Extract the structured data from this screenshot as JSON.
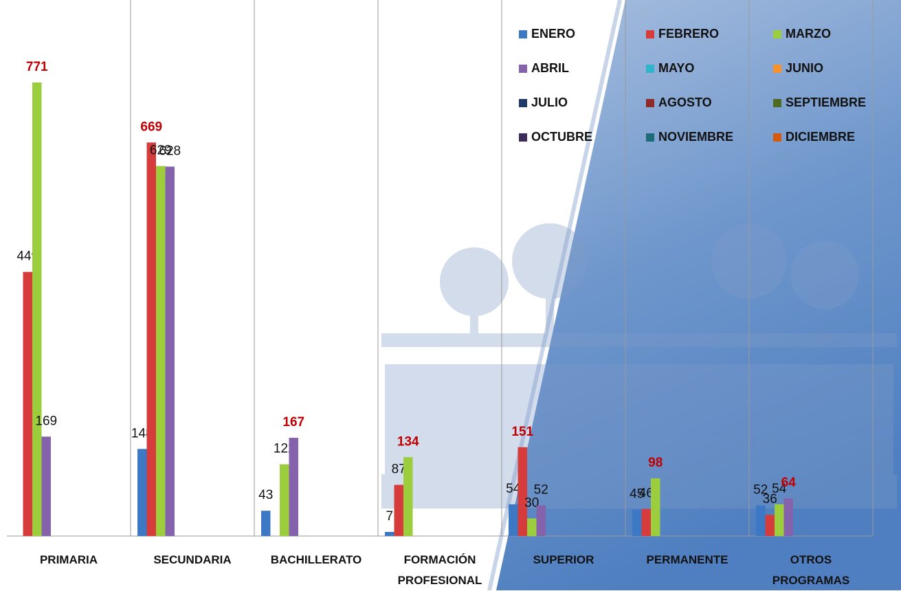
{
  "chart_data": {
    "type": "bar",
    "categories": [
      "PRIMARIA",
      "SECUNDARIA",
      "BACHILLERATO",
      "FORMACIÓN PROFESIONAL",
      "SUPERIOR",
      "PERMANENTE",
      "OTROS PROGRAMAS"
    ],
    "series": [
      {
        "name": "ENERO",
        "color": "#3c78c4",
        "values": [
          null,
          148,
          43,
          7,
          54,
          45,
          52
        ]
      },
      {
        "name": "FEBRERO",
        "color": "#d63c3c",
        "values": [
          449,
          669,
          null,
          87,
          151,
          46,
          36
        ]
      },
      {
        "name": "MARZO",
        "color": "#9ccd3c",
        "values": [
          771,
          629,
          122,
          134,
          30,
          98,
          54
        ]
      },
      {
        "name": "ABRIL",
        "color": "#8462ac",
        "values": [
          169,
          628,
          167,
          null,
          52,
          null,
          64
        ]
      },
      {
        "name": "MAYO",
        "color": "#2fb4cc",
        "values": [
          null,
          null,
          null,
          null,
          null,
          null,
          null
        ]
      },
      {
        "name": "JUNIO",
        "color": "#f7922e",
        "values": [
          null,
          null,
          null,
          null,
          null,
          null,
          null
        ]
      },
      {
        "name": "JULIO",
        "color": "#1f3a66",
        "values": [
          null,
          null,
          null,
          null,
          null,
          null,
          null
        ]
      },
      {
        "name": "AGOSTO",
        "color": "#8e2a2a",
        "values": [
          null,
          null,
          null,
          null,
          null,
          null,
          null
        ]
      },
      {
        "name": "SEPTIEMBRE",
        "color": "#4f6a22",
        "values": [
          null,
          null,
          null,
          null,
          null,
          null,
          null
        ]
      },
      {
        "name": "OCTUBRE",
        "color": "#3e2c5a",
        "values": [
          null,
          null,
          null,
          null,
          null,
          null,
          null
        ]
      },
      {
        "name": "NOVIEMBRE",
        "color": "#1f6a78",
        "values": [
          null,
          null,
          null,
          null,
          null,
          null,
          null
        ]
      },
      {
        "name": "DICIEMBRE",
        "color": "#d45a0e",
        "values": [
          null,
          null,
          null,
          null,
          null,
          null,
          null
        ]
      }
    ]
  }
}
